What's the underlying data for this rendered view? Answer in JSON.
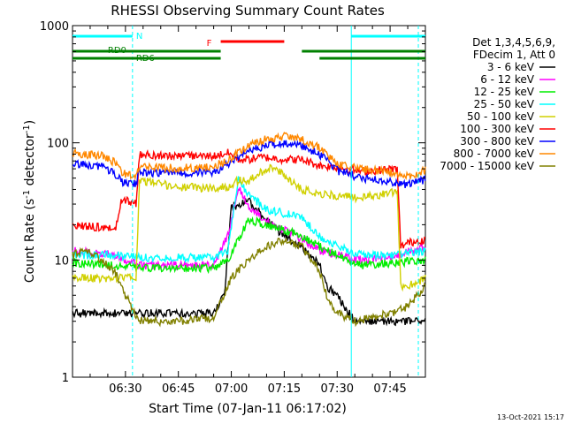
{
  "chart_data": {
    "type": "line",
    "title": "RHESSI Observing Summary Count Rates",
    "xlabel": "Start Time (07-Jan-11 06:17:02)",
    "ylabel_parts": [
      "Count Rate (s",
      "-1",
      " detector",
      "-1",
      ")"
    ],
    "yscale": "log",
    "ylim": [
      1,
      1000
    ],
    "xlim_min": [
      0,
      100
    ],
    "x_ticks": [
      {
        "m": 15,
        "label": "06:30"
      },
      {
        "m": 30,
        "label": "06:45"
      },
      {
        "m": 45,
        "label": "07:00"
      },
      {
        "m": 60,
        "label": "07:15"
      },
      {
        "m": 75,
        "label": "07:30"
      },
      {
        "m": 90,
        "label": "07:45"
      }
    ],
    "y_ticks": [
      {
        "v": 1,
        "label": "1"
      },
      {
        "v": 10,
        "label": "10"
      },
      {
        "v": 100,
        "label": "100"
      },
      {
        "v": 1000,
        "label": "1000"
      }
    ],
    "legend_header": [
      "Det 1,3,4,5,6,9,",
      "FDecim 1, Att 0"
    ],
    "series": [
      {
        "name": "3 - 6 keV",
        "color": "#000000",
        "points": [
          [
            19,
            3.5
          ],
          [
            30,
            3.5
          ],
          [
            40,
            3.5
          ],
          [
            43,
            5
          ],
          [
            45,
            28
          ],
          [
            50,
            32
          ],
          [
            55,
            22
          ],
          [
            60,
            16
          ],
          [
            65,
            13
          ],
          [
            70,
            9
          ],
          [
            72,
            6
          ],
          [
            75,
            5
          ],
          [
            77,
            4
          ],
          [
            80,
            3
          ]
        ]
      },
      {
        "name": "6 - 12 keV",
        "color": "#ff00ff",
        "points": [
          [
            0,
            12
          ],
          [
            12,
            11
          ],
          [
            19,
            9
          ],
          [
            30,
            9
          ],
          [
            40,
            9
          ],
          [
            44,
            16
          ],
          [
            47,
            42
          ],
          [
            50,
            28
          ],
          [
            55,
            22
          ],
          [
            60,
            18
          ],
          [
            65,
            15
          ],
          [
            70,
            12
          ],
          [
            75,
            11
          ],
          [
            82,
            10
          ],
          [
            92,
            11
          ],
          [
            100,
            13
          ]
        ]
      },
      {
        "name": "12 - 25 keV",
        "color": "#00ee00",
        "points": [
          [
            0,
            9.5
          ],
          [
            12,
            9
          ],
          [
            19,
            8.5
          ],
          [
            30,
            8.5
          ],
          [
            40,
            8.5
          ],
          [
            44,
            10
          ],
          [
            50,
            22
          ],
          [
            55,
            20
          ],
          [
            60,
            18
          ],
          [
            65,
            16
          ],
          [
            70,
            13
          ],
          [
            75,
            11
          ],
          [
            82,
            9
          ],
          [
            92,
            9.5
          ],
          [
            100,
            10
          ]
        ]
      },
      {
        "name": "25 - 50 keV",
        "color": "#00ffff",
        "points": [
          [
            0,
            11
          ],
          [
            12,
            11
          ],
          [
            19,
            10.5
          ],
          [
            30,
            10.5
          ],
          [
            40,
            10.5
          ],
          [
            44,
            12
          ],
          [
            47,
            48
          ],
          [
            50,
            36
          ],
          [
            55,
            27
          ],
          [
            60,
            25
          ],
          [
            65,
            23
          ],
          [
            70,
            16
          ],
          [
            75,
            13
          ],
          [
            82,
            11
          ],
          [
            92,
            11
          ],
          [
            100,
            12
          ]
        ]
      },
      {
        "name": "50 - 100 keV",
        "color": "#d0d000",
        "points": [
          [
            0,
            7
          ],
          [
            8,
            7
          ],
          [
            12,
            7
          ],
          [
            18,
            7
          ],
          [
            19,
            48
          ],
          [
            30,
            42
          ],
          [
            40,
            41
          ],
          [
            44,
            42
          ],
          [
            47,
            48
          ],
          [
            50,
            47
          ],
          [
            53,
            55
          ],
          [
            56,
            62
          ],
          [
            58,
            58
          ],
          [
            61,
            50
          ],
          [
            65,
            40
          ],
          [
            70,
            37
          ],
          [
            75,
            35
          ],
          [
            82,
            34
          ],
          [
            92,
            38
          ],
          [
            93,
            6
          ],
          [
            95,
            6
          ],
          [
            100,
            7
          ]
        ]
      },
      {
        "name": "100 - 300 keV",
        "color": "#ff0000",
        "points": [
          [
            0,
            20
          ],
          [
            8,
            19
          ],
          [
            12,
            18
          ],
          [
            14,
            33
          ],
          [
            18,
            30
          ],
          [
            19,
            80
          ],
          [
            30,
            77
          ],
          [
            40,
            77
          ],
          [
            44,
            82
          ],
          [
            47,
            72
          ],
          [
            50,
            72
          ],
          [
            53,
            75
          ],
          [
            55,
            75
          ],
          [
            60,
            72
          ],
          [
            65,
            72
          ],
          [
            70,
            64
          ],
          [
            75,
            62
          ],
          [
            82,
            57
          ],
          [
            92,
            60
          ],
          [
            93,
            13
          ],
          [
            95,
            14
          ],
          [
            100,
            15
          ]
        ]
      },
      {
        "name": "300 - 800 keV",
        "color": "#0000ff",
        "points": [
          [
            0,
            66
          ],
          [
            8,
            63
          ],
          [
            12,
            55
          ],
          [
            14,
            46
          ],
          [
            18,
            45
          ],
          [
            19,
            56
          ],
          [
            30,
            55
          ],
          [
            40,
            56
          ],
          [
            45,
            68
          ],
          [
            50,
            85
          ],
          [
            55,
            95
          ],
          [
            60,
            100
          ],
          [
            65,
            95
          ],
          [
            70,
            80
          ],
          [
            75,
            58
          ],
          [
            82,
            50
          ],
          [
            92,
            46
          ],
          [
            95,
            44
          ],
          [
            100,
            48
          ]
        ]
      },
      {
        "name": "800 - 7000 keV",
        "color": "#ff8800",
        "points": [
          [
            0,
            81
          ],
          [
            8,
            78
          ],
          [
            12,
            68
          ],
          [
            14,
            55
          ],
          [
            18,
            53
          ],
          [
            19,
            62
          ],
          [
            30,
            61
          ],
          [
            40,
            62
          ],
          [
            45,
            75
          ],
          [
            50,
            95
          ],
          [
            55,
            108
          ],
          [
            60,
            113
          ],
          [
            65,
            106
          ],
          [
            70,
            92
          ],
          [
            75,
            66
          ],
          [
            82,
            60
          ],
          [
            92,
            55
          ],
          [
            95,
            52
          ],
          [
            100,
            58
          ]
        ]
      },
      {
        "name": "7000 - 15000 keV",
        "color": "#808000",
        "points": [
          [
            0,
            11
          ],
          [
            4,
            12
          ],
          [
            8,
            10
          ],
          [
            12,
            8
          ],
          [
            15,
            5
          ],
          [
            19,
            3
          ],
          [
            30,
            3
          ],
          [
            40,
            3.2
          ],
          [
            45,
            7
          ],
          [
            50,
            10
          ],
          [
            55,
            13
          ],
          [
            60,
            15
          ],
          [
            65,
            13
          ],
          [
            70,
            8
          ],
          [
            72,
            5
          ],
          [
            75,
            3.5
          ],
          [
            80,
            3
          ],
          [
            90,
            3.5
          ],
          [
            95,
            4
          ],
          [
            100,
            6
          ]
        ]
      }
    ],
    "states": {
      "N": {
        "label": "N",
        "color": "#00ffff",
        "segments": [
          [
            0,
            17
          ],
          [
            79,
            100
          ]
        ]
      },
      "F": {
        "label": "F",
        "color": "#ff0000",
        "segments": [
          [
            42,
            60
          ]
        ]
      },
      "RD0": {
        "label": "RD0",
        "color": "#008000",
        "segments": [
          [
            0,
            42
          ],
          [
            65,
            100
          ]
        ]
      },
      "RD6": {
        "label": "RD6",
        "color": "#008000",
        "segments": [
          [
            0,
            42
          ],
          [
            70,
            100
          ]
        ]
      }
    },
    "vlines_cyan_solid": [
      79
    ],
    "vlines_cyan_dashed": [
      17,
      98
    ],
    "grid": false,
    "legend_placement": "right"
  },
  "footer": {
    "timestamp": "13-Oct-2021 15:17"
  }
}
